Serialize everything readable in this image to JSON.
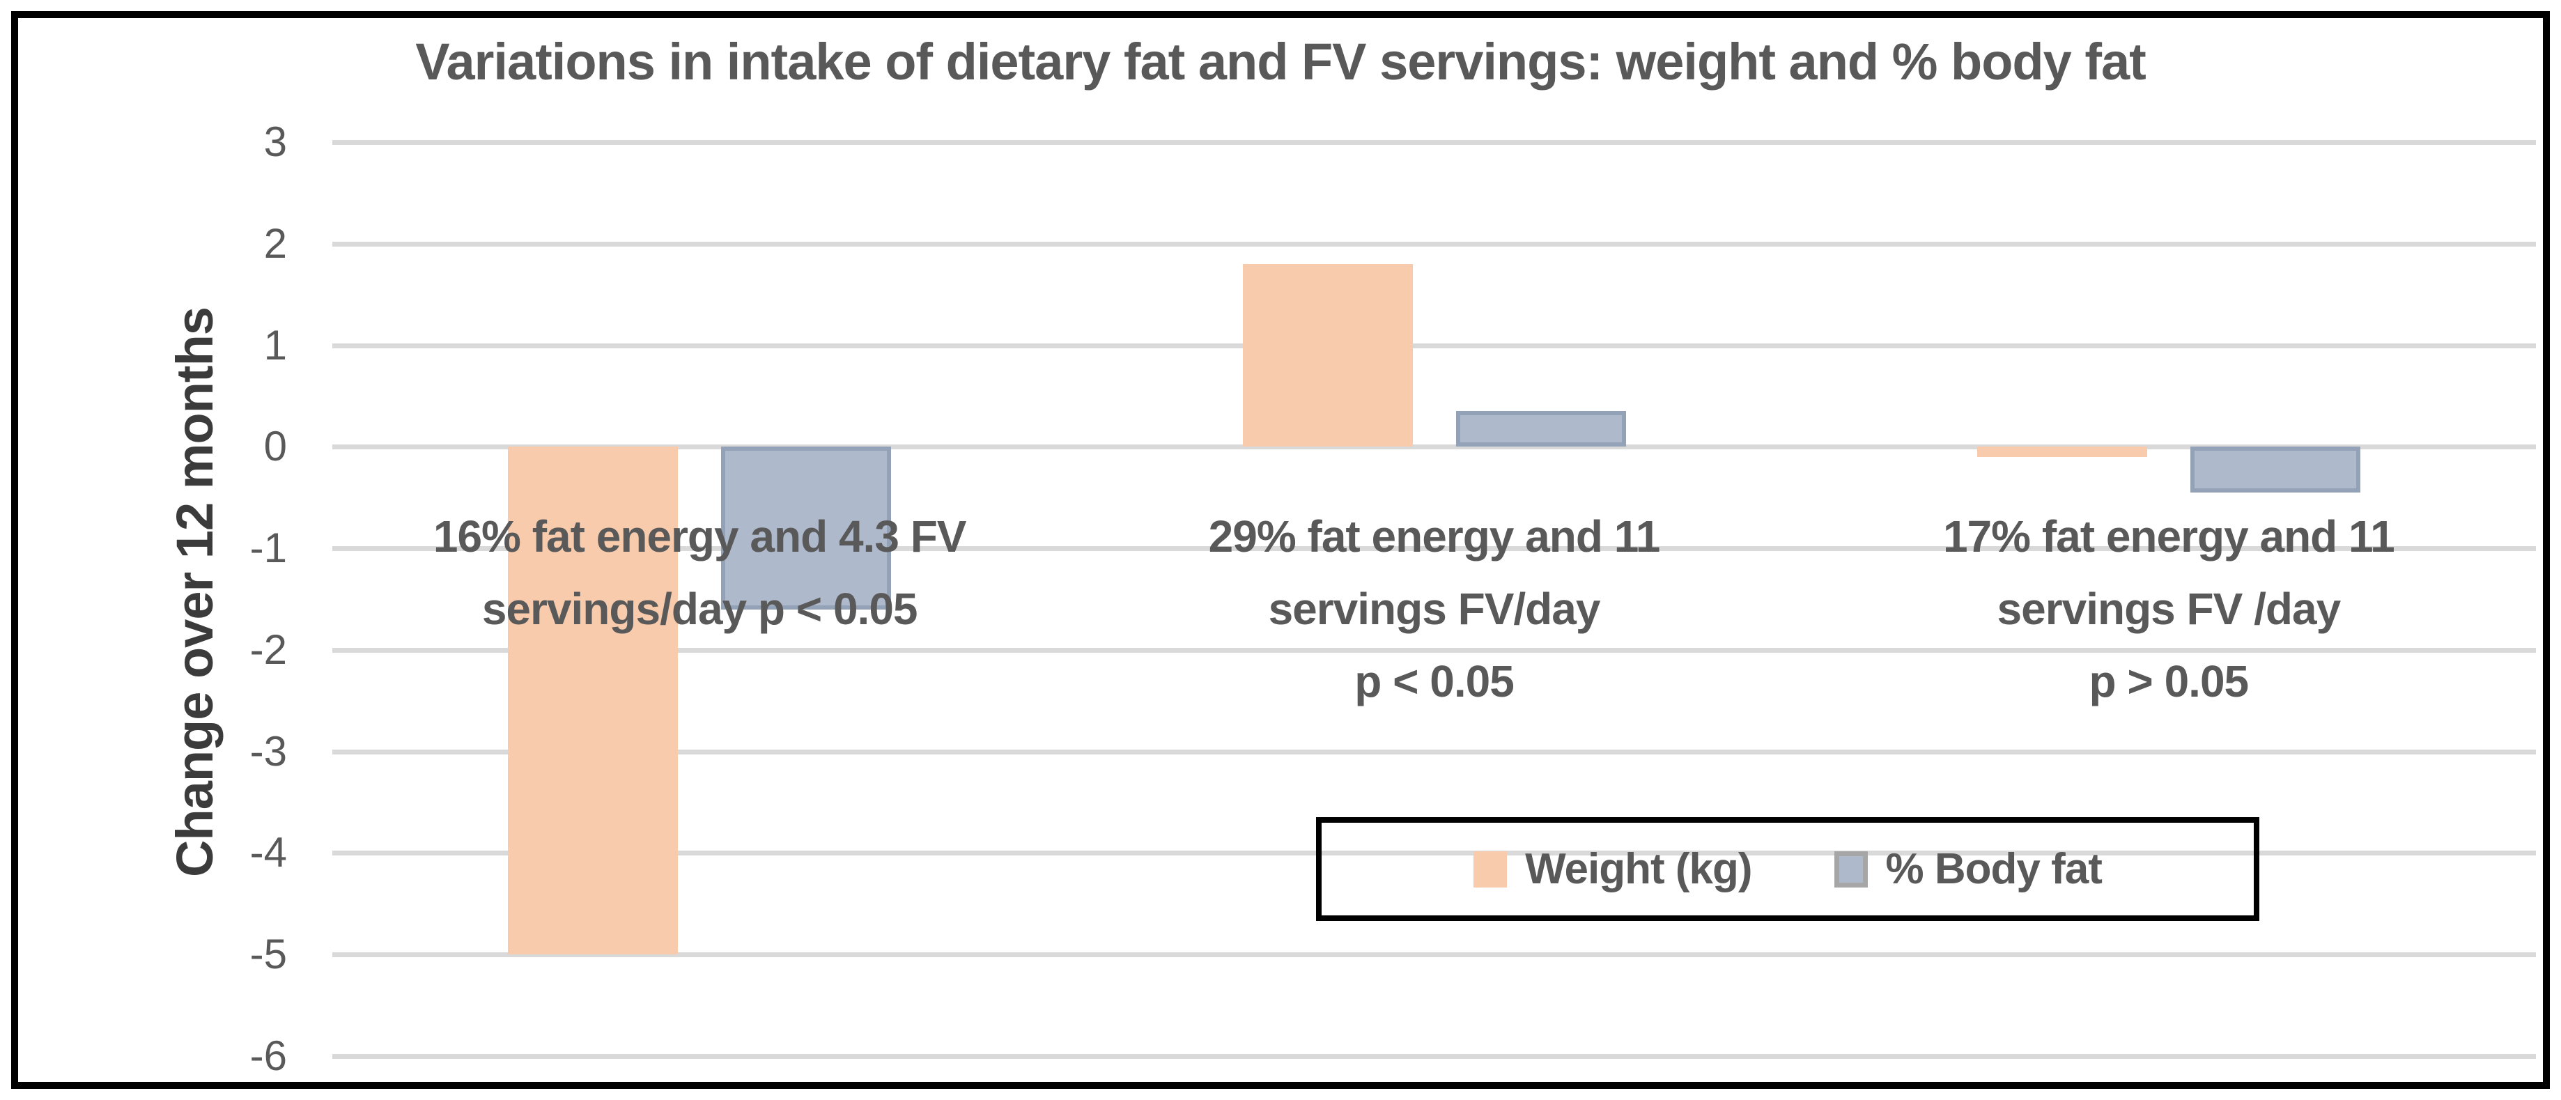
{
  "chart_data": {
    "type": "bar",
    "title": "Variations in intake of dietary fat and FV servings: weight and % body fat",
    "xlabel": "",
    "ylabel": "Change over 12 months",
    "ylim": [
      -6,
      3
    ],
    "grid": true,
    "gridline_color": "#D9D9D9",
    "legend_position": "inside-bottom-right",
    "categories": [
      "16% fat energy and 4.3 FV\nservings/day p < 0.05",
      "29% fat energy and 11\nservings FV/day\np < 0.05",
      "17% fat energy and 11\nservings FV /day\np > 0.05"
    ],
    "series": [
      {
        "name": "Weight (kg)",
        "color": "#F8CBAD",
        "border_color": "",
        "values": [
          -5.0,
          1.8,
          -0.1
        ]
      },
      {
        "name": "% Body fat",
        "color": "#AFB9CC",
        "border_color": "#94A2B8",
        "values": [
          -1.6,
          0.35,
          -0.45
        ]
      }
    ]
  },
  "y_axis": {
    "label": "Change over 12 months",
    "ticks": [
      3,
      2,
      1,
      0,
      -1,
      -2,
      -3,
      -4,
      -5,
      -6
    ]
  },
  "legend": {
    "swatch_border_color": "#A6A6A6",
    "border_color": "#000000"
  },
  "colors": {
    "background": "#FFFFFF",
    "frame_border": "#000000",
    "title_text": "#595959",
    "y_axis_title_text": "#3B3B3B",
    "tick_text": "#595959",
    "category_text": "#595959",
    "gridline": "#D9D9D9",
    "weight_fill": "#F8CBAD",
    "body_fat_fill": "#AFB9CC",
    "body_fat_border": "#94A2B8"
  }
}
